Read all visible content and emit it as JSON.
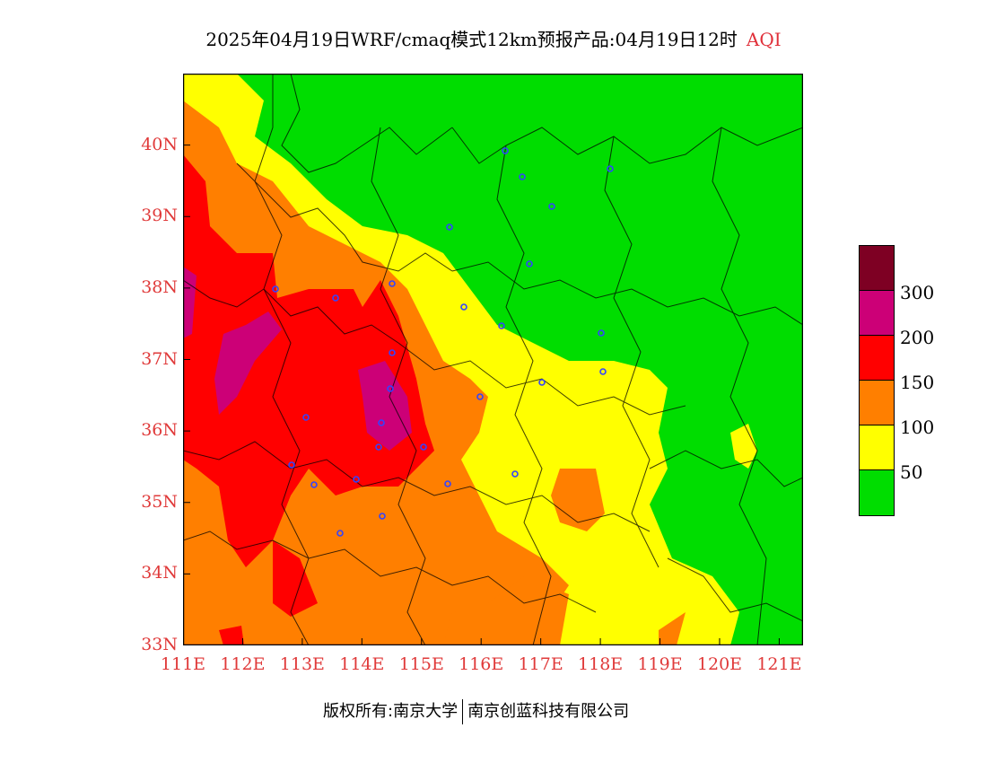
{
  "title": {
    "main": "2025年04月19日WRF/cmaq模式12km预报产品:04月19日12时",
    "variable": "AQI"
  },
  "colors": {
    "aqi_0_50": "#00dd00",
    "aqi_50_100": "#ffff00",
    "aqi_100_150": "#ff7f00",
    "aqi_150_200": "#ff0000",
    "aqi_200_300": "#cc0077",
    "aqi_300_plus": "#7e0023",
    "axis_labels": "#e03a3a",
    "boundaries": "#000000",
    "stations": "#3344ff"
  },
  "axes": {
    "lat_ticks": [
      "40N",
      "39N",
      "38N",
      "37N",
      "36N",
      "35N",
      "34N",
      "33N"
    ],
    "lon_ticks": [
      "111E",
      "112E",
      "113E",
      "114E",
      "115E",
      "116E",
      "117E",
      "118E",
      "119E",
      "120E",
      "121E"
    ],
    "lon_range": [
      111,
      121.4
    ],
    "lat_range": [
      33,
      41
    ]
  },
  "legend": {
    "labels": [
      "300",
      "200",
      "150",
      "100",
      "50"
    ],
    "icon": "colorbar-icon"
  },
  "footer": {
    "copyright": "版权所有:南京大学",
    "company": "南京创蓝科技有限公司"
  },
  "map": {
    "icons": [
      "city-station-marker-icon",
      "province-boundary-icon"
    ]
  }
}
